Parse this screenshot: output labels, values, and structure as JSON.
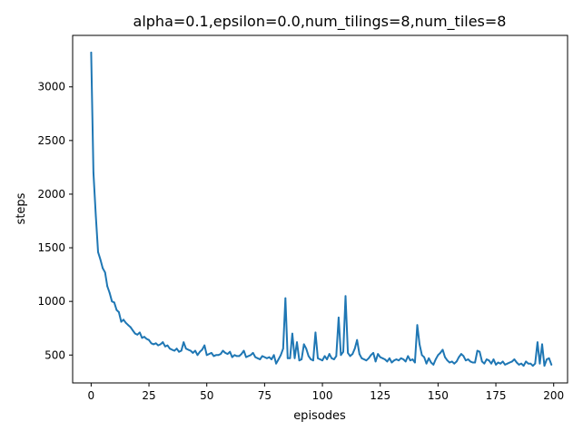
{
  "chart_data": {
    "type": "line",
    "title": "alpha=0.1,epsilon=0.0,num_tilings=8,num_tiles=8",
    "xlabel": "episodes",
    "ylabel": "steps",
    "xlim": [
      -8,
      206
    ],
    "ylim": [
      240,
      3480
    ],
    "xticks": [
      0,
      25,
      50,
      75,
      100,
      125,
      150,
      175,
      200
    ],
    "yticks": [
      500,
      1000,
      1500,
      2000,
      2500,
      3000
    ],
    "grid": false,
    "legend": "none",
    "series": [
      {
        "color": "#1f77b4",
        "x": [
          0,
          1,
          2,
          3,
          4,
          5,
          6,
          7,
          8,
          9,
          10,
          11,
          12,
          13,
          14,
          15,
          16,
          17,
          18,
          19,
          20,
          21,
          22,
          23,
          24,
          25,
          26,
          27,
          28,
          29,
          30,
          31,
          32,
          33,
          34,
          35,
          36,
          37,
          38,
          39,
          40,
          41,
          42,
          43,
          44,
          45,
          46,
          47,
          48,
          49,
          50,
          51,
          52,
          53,
          54,
          55,
          56,
          57,
          58,
          59,
          60,
          61,
          62,
          63,
          64,
          65,
          66,
          67,
          68,
          69,
          70,
          71,
          72,
          73,
          74,
          75,
          76,
          77,
          78,
          79,
          80,
          81,
          82,
          83,
          84,
          85,
          86,
          87,
          88,
          89,
          90,
          91,
          92,
          93,
          94,
          95,
          96,
          97,
          98,
          99,
          100,
          101,
          102,
          103,
          104,
          105,
          106,
          107,
          108,
          109,
          110,
          111,
          112,
          113,
          114,
          115,
          116,
          117,
          118,
          119,
          120,
          121,
          122,
          123,
          124,
          125,
          126,
          127,
          128,
          129,
          130,
          131,
          132,
          133,
          134,
          135,
          136,
          137,
          138,
          139,
          140,
          141,
          142,
          143,
          144,
          145,
          146,
          147,
          148,
          149,
          150,
          151,
          152,
          153,
          154,
          155,
          156,
          157,
          158,
          159,
          160,
          161,
          162,
          163,
          164,
          165,
          166,
          167,
          168,
          169,
          170,
          171,
          172,
          173,
          174,
          175,
          176,
          177,
          178,
          179,
          180,
          181,
          182,
          183,
          184,
          185,
          186,
          187,
          188,
          189,
          190,
          191,
          192,
          193,
          194,
          195,
          196,
          197,
          198,
          199
        ],
        "values": [
          3320,
          2200,
          1800,
          1460,
          1390,
          1310,
          1270,
          1140,
          1080,
          1000,
          990,
          920,
          900,
          810,
          830,
          800,
          780,
          760,
          730,
          700,
          690,
          710,
          660,
          670,
          650,
          640,
          610,
          600,
          610,
          590,
          600,
          620,
          580,
          590,
          560,
          550,
          540,
          560,
          530,
          540,
          620,
          560,
          550,
          540,
          520,
          540,
          500,
          530,
          550,
          590,
          500,
          510,
          520,
          490,
          500,
          500,
          510,
          540,
          520,
          510,
          530,
          480,
          500,
          490,
          490,
          510,
          540,
          480,
          490,
          500,
          520,
          480,
          470,
          460,
          490,
          480,
          470,
          480,
          460,
          500,
          420,
          460,
          500,
          560,
          1030,
          470,
          470,
          700,
          470,
          620,
          450,
          460,
          600,
          560,
          490,
          460,
          450,
          710,
          470,
          460,
          450,
          490,
          460,
          510,
          470,
          460,
          490,
          850,
          500,
          530,
          1050,
          520,
          490,
          510,
          560,
          640,
          510,
          470,
          460,
          450,
          470,
          500,
          520,
          440,
          510,
          480,
          470,
          460,
          440,
          470,
          430,
          450,
          460,
          450,
          470,
          460,
          440,
          490,
          450,
          460,
          430,
          780,
          600,
          500,
          480,
          420,
          470,
          430,
          410,
          460,
          500,
          520,
          550,
          480,
          450,
          430,
          440,
          420,
          440,
          480,
          510,
          490,
          450,
          460,
          440,
          430,
          430,
          540,
          530,
          440,
          420,
          460,
          450,
          420,
          460,
          410,
          430,
          420,
          440,
          410,
          420,
          430,
          440,
          460,
          430,
          410,
          420,
          400,
          440,
          420,
          420,
          400,
          420,
          620,
          420,
          600,
          400,
          460,
          470,
          410
        ]
      }
    ]
  }
}
